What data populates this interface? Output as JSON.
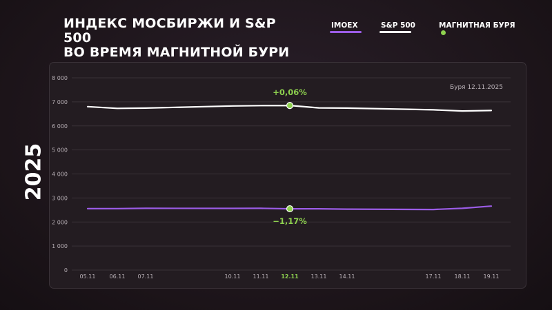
{
  "title_line1": "ИНДЕКС МОСБИРЖИ И S&P 500",
  "title_line2": "ВО ВРЕМЯ МАГНИТНОЙ БУРИ",
  "year": "2025",
  "legend": {
    "imoex": "IMOEX",
    "sp500": "S&P 500",
    "storm": "МАГНИТНАЯ БУРЯ"
  },
  "annotation": "Буря 12.11.2025",
  "colors": {
    "imoex": "#9b5ce6",
    "sp500": "#ffffff",
    "storm": "#8ed14f",
    "axis_text": "#b8b0b6"
  },
  "chart_data": {
    "type": "line",
    "x": [
      "05.11",
      "06.11",
      "07.11",
      "10.11",
      "11.11",
      "12.11",
      "13.11",
      "14.11",
      "17.11",
      "18.11",
      "19.11"
    ],
    "ylim": [
      0,
      8000
    ],
    "yticks": [
      0,
      1000,
      2000,
      3000,
      4000,
      5000,
      6000,
      7000,
      8000
    ],
    "ytick_labels": [
      "0",
      "1 000",
      "2 000",
      "3 000",
      "4 000",
      "5 000",
      "6 000",
      "7 000",
      "8 000"
    ],
    "series": [
      {
        "name": "IMOEX",
        "values": [
          2555,
          2555,
          2570,
          2565,
          2570,
          2550,
          2550,
          2535,
          2520,
          2570,
          2660
        ]
      },
      {
        "name": "S&P 500",
        "values": [
          6800,
          6730,
          6740,
          6830,
          6845,
          6850,
          6750,
          6740,
          6670,
          6620,
          6640
        ]
      }
    ],
    "highlight_index": 5,
    "highlight_label": "12.11",
    "labels": {
      "imoex": "−1,17%",
      "sp500": "+0,06%"
    }
  }
}
